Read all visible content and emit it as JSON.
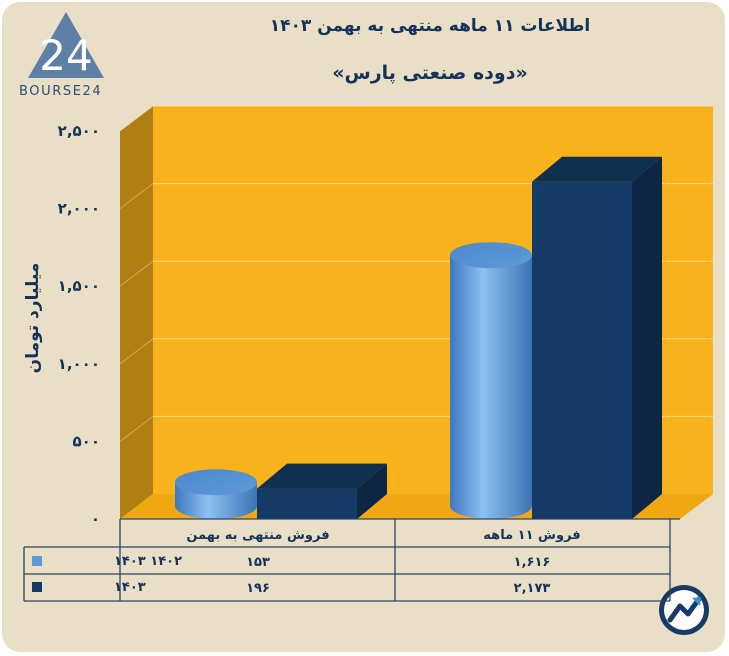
{
  "header": {
    "title": "اطلاعات ۱۱ ماهه منتهی به بهمن ۱۴۰۳",
    "subtitle": "«دوده صنعتی پارس»"
  },
  "logo": {
    "text": "BOURSE24",
    "mark": "24"
  },
  "colors": {
    "background": "#e9dfc6",
    "plot_back": "#f7b21c",
    "plot_side": "#b07e12",
    "plot_floor": "#efa712",
    "series_1402": "#5b9bd5",
    "series_1403": "#163a66",
    "text": "#15335a"
  },
  "chart_data": {
    "type": "bar",
    "ylabel": "میلیارد تومان",
    "ylim": [
      0,
      2500
    ],
    "yticks": [
      0,
      500,
      1000,
      1500,
      2000,
      2500
    ],
    "ytick_labels": [
      "۰",
      "۵۰۰",
      "۱,۰۰۰",
      "۱,۵۰۰",
      "۲,۰۰۰",
      "۲,۵۰۰"
    ],
    "grid": true,
    "categories": [
      "فروش منتهی به  بهمن",
      "فروش ۱۱  ماهه"
    ],
    "series": [
      {
        "name": "۱۴۰۲ ۱۴۰۳",
        "shape": "cylinder",
        "color": "#5b9bd5",
        "values": [
          153,
          1616
        ],
        "labels": [
          "۱۵۳",
          "۱,۶۱۶"
        ]
      },
      {
        "name": "۱۴۰۳",
        "shape": "box",
        "color": "#163a66",
        "values": [
          196,
          2173
        ],
        "labels": [
          "۱۹۶",
          "۲,۱۷۳"
        ]
      }
    ]
  }
}
